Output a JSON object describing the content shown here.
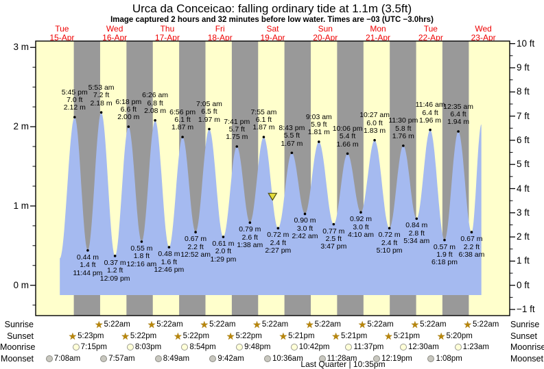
{
  "title": "Urca da Conceicao: falling  ordinary tide at 1.1m (3.5ft)",
  "subtitle": "Image captured 2 hours and 32 minutes before low water. Times are −03 (UTC −3.0hrs)",
  "colors": {
    "day_band": "#ffffcc",
    "night_band": "#999999",
    "tide_area": "#a5baf0",
    "day_label_red": "#ee0000",
    "sun_star": "#b8860b",
    "marker_fill": "#e3dc3c"
  },
  "chart_data": {
    "type": "area",
    "title": "Urca da Conceicao: falling  ordinary tide at 1.1m (3.5ft)",
    "xlabel": "",
    "ylabel": "tide height",
    "y_axis_left": {
      "unit": "m",
      "tick_values": [
        3,
        2,
        1,
        0
      ],
      "tick_labels": [
        "3 m",
        "2 m",
        "1 m",
        "0 m"
      ],
      "minor_step_m": 0.25
    },
    "y_axis_right": {
      "unit": "ft",
      "tick_values": [
        10,
        9,
        8,
        7,
        6,
        5,
        4,
        3,
        2,
        1,
        0,
        -1
      ],
      "tick_labels": [
        "10 ft",
        "9 ft",
        "8 ft",
        "7 ft",
        "6 ft",
        "5 ft",
        "4 ft",
        "3 ft",
        "2 ft",
        "1 ft",
        "0 ft",
        "−1 ft"
      ],
      "minor_step_ft": 0.5
    },
    "x_axis_days": [
      {
        "weekday": "Tue",
        "date": "15-Apr"
      },
      {
        "weekday": "Wed",
        "date": "16-Apr"
      },
      {
        "weekday": "Thu",
        "date": "17-Apr"
      },
      {
        "weekday": "Fri",
        "date": "18-Apr"
      },
      {
        "weekday": "Sat",
        "date": "19-Apr"
      },
      {
        "weekday": "Sun",
        "date": "20-Apr"
      },
      {
        "weekday": "Mon",
        "date": "21-Apr"
      },
      {
        "weekday": "Tue",
        "date": "22-Apr"
      },
      {
        "weekday": "Wed",
        "date": "23-Apr"
      }
    ],
    "tide_extremes": [
      {
        "kind": "high",
        "day": 0,
        "hour": 17.75,
        "time": "5:45 pm",
        "label_ft": "7.0 ft",
        "label_m": "2.12 m",
        "height_m": 2.12
      },
      {
        "kind": "low",
        "day": 0,
        "hour": 23.73,
        "time": "11:44 pm",
        "label_ft": "1.4 ft",
        "label_m": "0.44 m",
        "height_m": 0.44
      },
      {
        "kind": "high",
        "day": 1,
        "hour": 5.88,
        "time": "5:53 am",
        "label_ft": "7.2 ft",
        "label_m": "2.18 m",
        "height_m": 2.18
      },
      {
        "kind": "low",
        "day": 1,
        "hour": 12.15,
        "time": "12:09 pm",
        "label_ft": "1.2 ft",
        "label_m": "0.37 m",
        "height_m": 0.37
      },
      {
        "kind": "high",
        "day": 1,
        "hour": 18.3,
        "time": "6:18 pm",
        "label_ft": "6.6 ft",
        "label_m": "2.00 m",
        "height_m": 2.0
      },
      {
        "kind": "low",
        "day": 2,
        "hour": 0.27,
        "time": "12:16 am",
        "label_ft": "1.8 ft",
        "label_m": "0.55 m",
        "height_m": 0.55
      },
      {
        "kind": "high",
        "day": 2,
        "hour": 6.43,
        "time": "6:26 am",
        "label_ft": "6.8 ft",
        "label_m": "2.08 m",
        "height_m": 2.08
      },
      {
        "kind": "low",
        "day": 2,
        "hour": 12.77,
        "time": "12:46 pm",
        "label_ft": "1.6 ft",
        "label_m": "0.48 m",
        "height_m": 0.48
      },
      {
        "kind": "high",
        "day": 2,
        "hour": 18.93,
        "time": "6:56 pm",
        "label_ft": "6.1 ft",
        "label_m": "1.87 m",
        "height_m": 1.87
      },
      {
        "kind": "low",
        "day": 3,
        "hour": 0.87,
        "time": "12:52 am",
        "label_ft": "2.2 ft",
        "label_m": "0.67 m",
        "height_m": 0.67
      },
      {
        "kind": "high",
        "day": 3,
        "hour": 7.08,
        "time": "7:05 am",
        "label_ft": "6.5 ft",
        "label_m": "1.97 m",
        "height_m": 1.97
      },
      {
        "kind": "low",
        "day": 3,
        "hour": 13.48,
        "time": "1:29 pm",
        "label_ft": "2.0 ft",
        "label_m": "0.61 m",
        "height_m": 0.61
      },
      {
        "kind": "high",
        "day": 3,
        "hour": 19.68,
        "time": "7:41 pm",
        "label_ft": "5.7 ft",
        "label_m": "1.75 m",
        "height_m": 1.75
      },
      {
        "kind": "low",
        "day": 4,
        "hour": 1.63,
        "time": "1:38 am",
        "label_ft": "2.6 ft",
        "label_m": "0.79 m",
        "height_m": 0.79
      },
      {
        "kind": "high",
        "day": 4,
        "hour": 7.92,
        "time": "7:55 am",
        "label_ft": "6.1 ft",
        "label_m": "1.87 m",
        "height_m": 1.87
      },
      {
        "kind": "low",
        "day": 4,
        "hour": 14.45,
        "time": "2:27 pm",
        "label_ft": "2.4 ft",
        "label_m": "0.72 m",
        "height_m": 0.72
      },
      {
        "kind": "high",
        "day": 4,
        "hour": 20.72,
        "time": "8:43 pm",
        "label_ft": "5.5 ft",
        "label_m": "1.67 m",
        "height_m": 1.67
      },
      {
        "kind": "low",
        "day": 5,
        "hour": 2.7,
        "time": "2:42 am",
        "label_ft": "3.0 ft",
        "label_m": "0.90 m",
        "height_m": 0.9
      },
      {
        "kind": "high",
        "day": 5,
        "hour": 9.05,
        "time": "9:03 am",
        "label_ft": "5.9 ft",
        "label_m": "1.81 m",
        "height_m": 1.81
      },
      {
        "kind": "low",
        "day": 5,
        "hour": 15.78,
        "time": "3:47 pm",
        "label_ft": "2.5 ft",
        "label_m": "0.77 m",
        "height_m": 0.77
      },
      {
        "kind": "high",
        "day": 5,
        "hour": 22.1,
        "time": "10:06 pm",
        "label_ft": "5.4 ft",
        "label_m": "1.66 m",
        "height_m": 1.66
      },
      {
        "kind": "low",
        "day": 6,
        "hour": 4.17,
        "time": "4:10 am",
        "label_ft": "3.0 ft",
        "label_m": "0.92 m",
        "height_m": 0.92
      },
      {
        "kind": "high",
        "day": 6,
        "hour": 10.45,
        "time": "10:27 am",
        "label_ft": "6.0 ft",
        "label_m": "1.83 m",
        "height_m": 1.83
      },
      {
        "kind": "low",
        "day": 6,
        "hour": 17.17,
        "time": "5:10 pm",
        "label_ft": "2.4 ft",
        "label_m": "0.72 m",
        "height_m": 0.72
      },
      {
        "kind": "high",
        "day": 6,
        "hour": 23.5,
        "time": "11:30 pm",
        "label_ft": "5.8 ft",
        "label_m": "1.76 m",
        "height_m": 1.76
      },
      {
        "kind": "low",
        "day": 7,
        "hour": 5.57,
        "time": "5:34 am",
        "label_ft": "2.8 ft",
        "label_m": "0.84 m",
        "height_m": 0.84
      },
      {
        "kind": "high",
        "day": 7,
        "hour": 11.77,
        "time": "11:46 am",
        "label_ft": "6.4 ft",
        "label_m": "1.96 m",
        "height_m": 1.96
      },
      {
        "kind": "low",
        "day": 7,
        "hour": 18.3,
        "time": "6:18 pm",
        "label_ft": "1.9 ft",
        "label_m": "0.57 m",
        "height_m": 0.57
      },
      {
        "kind": "high",
        "day": 8,
        "hour": 0.58,
        "time": "12:35 am",
        "label_ft": "6.4 ft",
        "label_m": "1.94 m",
        "height_m": 1.94
      },
      {
        "kind": "low",
        "day": 8,
        "hour": 6.63,
        "time": "6:38 am",
        "label_ft": "2.2 ft",
        "label_m": "0.67 m",
        "height_m": 0.67
      }
    ],
    "curve_endpoints": {
      "start": {
        "day": 0,
        "hour": 11.0,
        "height_m": 0.34
      },
      "end": {
        "day": 8,
        "hour": 11.1,
        "height_m": 2.03
      }
    },
    "current_marker": {
      "day": 4,
      "hour": 11.93,
      "height_m": 1.1,
      "symbol": "triangle-down"
    },
    "night_bands": {
      "sunset_hours": [
        17.38,
        17.37,
        17.37,
        17.37,
        17.35,
        17.35,
        17.35,
        17.33
      ],
      "sunrise_hour": 5.37
    }
  },
  "astro": {
    "row_labels": [
      "Sunrise",
      "Sunset",
      "Moonrise",
      "Moonset"
    ],
    "rows": [
      {
        "label": "Sunrise",
        "icon": "sun-star",
        "entries": [
          {
            "day": 1,
            "hour": 5.37,
            "time": "5:22am"
          },
          {
            "day": 2,
            "hour": 5.37,
            "time": "5:22am"
          },
          {
            "day": 3,
            "hour": 5.37,
            "time": "5:22am"
          },
          {
            "day": 4,
            "hour": 5.37,
            "time": "5:22am"
          },
          {
            "day": 5,
            "hour": 5.37,
            "time": "5:22am"
          },
          {
            "day": 6,
            "hour": 5.37,
            "time": "5:22am"
          },
          {
            "day": 7,
            "hour": 5.37,
            "time": "5:22am"
          },
          {
            "day": 8,
            "hour": 5.37,
            "time": "5:22am"
          }
        ]
      },
      {
        "label": "Sunset",
        "icon": "sun-star",
        "entries": [
          {
            "day": 0,
            "hour": 17.38,
            "time": "5:23pm"
          },
          {
            "day": 1,
            "hour": 17.37,
            "time": "5:22pm"
          },
          {
            "day": 2,
            "hour": 17.37,
            "time": "5:22pm"
          },
          {
            "day": 3,
            "hour": 17.37,
            "time": "5:22pm"
          },
          {
            "day": 4,
            "hour": 17.35,
            "time": "5:21pm"
          },
          {
            "day": 5,
            "hour": 17.35,
            "time": "5:21pm"
          },
          {
            "day": 6,
            "hour": 17.35,
            "time": "5:21pm"
          },
          {
            "day": 7,
            "hour": 17.33,
            "time": "5:20pm"
          }
        ]
      },
      {
        "label": "Moonrise",
        "icon": "moon-light",
        "entries": [
          {
            "day": 0,
            "hour": 19.25,
            "time": "7:15pm"
          },
          {
            "day": 1,
            "hour": 20.05,
            "time": "8:03pm"
          },
          {
            "day": 2,
            "hour": 20.9,
            "time": "8:54pm"
          },
          {
            "day": 3,
            "hour": 21.8,
            "time": "9:48pm"
          },
          {
            "day": 4,
            "hour": 22.7,
            "time": "10:42pm"
          },
          {
            "day": 5,
            "hour": 23.62,
            "time": "11:37pm"
          },
          {
            "day": 7,
            "hour": 0.5,
            "time": "12:30am"
          },
          {
            "day": 8,
            "hour": 1.38,
            "time": "1:23am"
          }
        ]
      },
      {
        "label": "Moonset",
        "icon": "moon-dark",
        "entries": [
          {
            "day": 0,
            "hour": 7.13,
            "time": "7:08am"
          },
          {
            "day": 1,
            "hour": 7.95,
            "time": "7:57am"
          },
          {
            "day": 2,
            "hour": 8.82,
            "time": "8:49am"
          },
          {
            "day": 3,
            "hour": 9.7,
            "time": "9:42am"
          },
          {
            "day": 4,
            "hour": 10.6,
            "time": "10:36am"
          },
          {
            "day": 5,
            "hour": 11.47,
            "time": "11:28am"
          },
          {
            "day": 6,
            "hour": 12.32,
            "time": "12:19pm"
          },
          {
            "day": 7,
            "hour": 13.13,
            "time": "1:08pm"
          }
        ]
      }
    ],
    "moon_phase": "Last Quarter | 10:35pm"
  }
}
